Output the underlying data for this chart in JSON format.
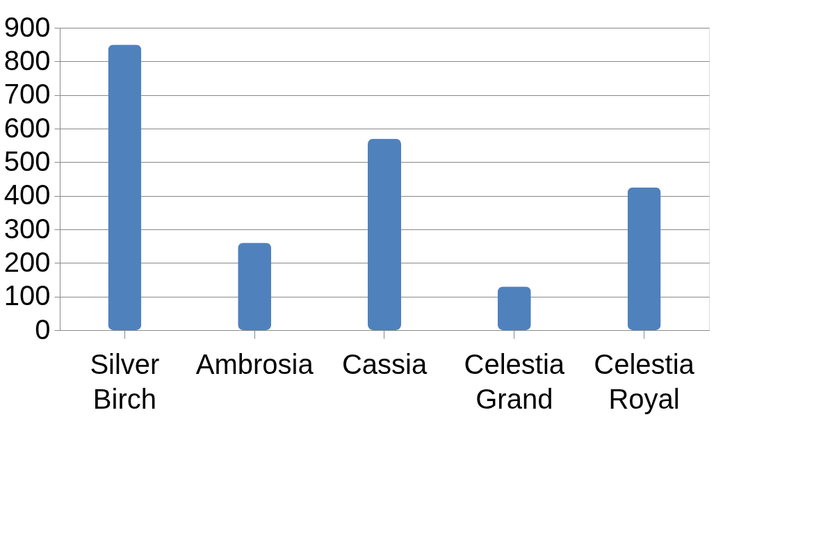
{
  "chart_data": {
    "type": "bar",
    "categories": [
      "Silver Birch",
      "Ambrosia",
      "Cassia",
      "Celestia Grand",
      "Celestia Royal"
    ],
    "values": [
      850,
      260,
      570,
      130,
      425
    ],
    "color": "#4f81bd",
    "ylim": [
      0,
      900
    ],
    "yticks": [
      0,
      100,
      200,
      300,
      400,
      500,
      600,
      700,
      800,
      900
    ],
    "grid": "y"
  }
}
